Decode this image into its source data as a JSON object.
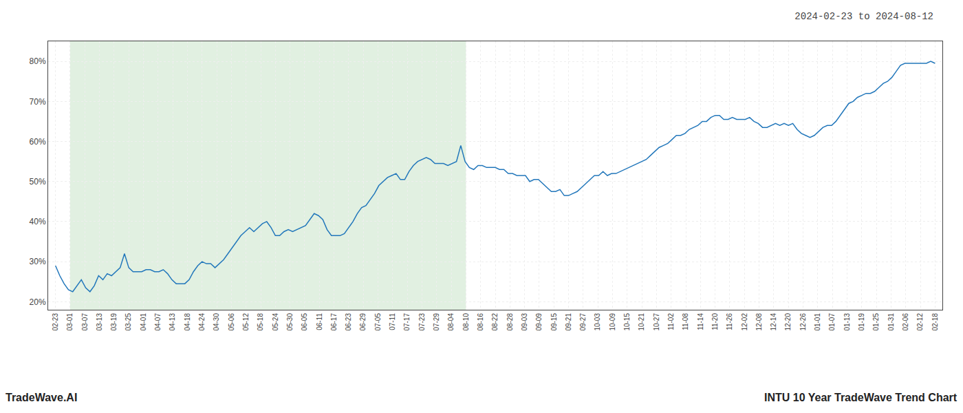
{
  "chart_data": {
    "type": "line",
    "title": "2024-02-23 to 2024-08-12",
    "annotations": [
      "TradeWave.AI",
      "INTU 10 Year TradeWave Trend Chart"
    ],
    "color": "#2277bb",
    "grid": true,
    "shade": {
      "from": "03-01",
      "to": "08-10",
      "color": "#d4ead4"
    },
    "xlim": [
      -1.7,
      205.7
    ],
    "xticks": [
      {
        "value": 0,
        "label": "02-23"
      },
      {
        "value": 3.4,
        "label": "03-01"
      },
      {
        "value": 6.8,
        "label": "03-07"
      },
      {
        "value": 10.2,
        "label": "03-13"
      },
      {
        "value": 13.6,
        "label": "03-19"
      },
      {
        "value": 17,
        "label": "03-25"
      },
      {
        "value": 20.4,
        "label": "04-01"
      },
      {
        "value": 23.8,
        "label": "04-07"
      },
      {
        "value": 27.2,
        "label": "04-13"
      },
      {
        "value": 30.6,
        "label": "04-18"
      },
      {
        "value": 34,
        "label": "04-24"
      },
      {
        "value": 37.4,
        "label": "04-30"
      },
      {
        "value": 40.8,
        "label": "05-06"
      },
      {
        "value": 44.2,
        "label": "05-12"
      },
      {
        "value": 47.6,
        "label": "05-18"
      },
      {
        "value": 51,
        "label": "05-24"
      },
      {
        "value": 54.4,
        "label": "05-30"
      },
      {
        "value": 57.8,
        "label": "06-05"
      },
      {
        "value": 61.2,
        "label": "06-11"
      },
      {
        "value": 64.6,
        "label": "06-17"
      },
      {
        "value": 68,
        "label": "06-23"
      },
      {
        "value": 71.4,
        "label": "06-29"
      },
      {
        "value": 74.8,
        "label": "07-05"
      },
      {
        "value": 78.2,
        "label": "07-11"
      },
      {
        "value": 81.6,
        "label": "07-17"
      },
      {
        "value": 85,
        "label": "07-23"
      },
      {
        "value": 88.4,
        "label": "07-29"
      },
      {
        "value": 91.8,
        "label": "08-04"
      },
      {
        "value": 95.2,
        "label": "08-10"
      },
      {
        "value": 98.6,
        "label": "08-16"
      },
      {
        "value": 102,
        "label": "08-22"
      },
      {
        "value": 105.4,
        "label": "08-28"
      },
      {
        "value": 108.8,
        "label": "09-03"
      },
      {
        "value": 112.2,
        "label": "09-09"
      },
      {
        "value": 115.6,
        "label": "09-15"
      },
      {
        "value": 119,
        "label": "09-21"
      },
      {
        "value": 122.4,
        "label": "09-27"
      },
      {
        "value": 125.8,
        "label": "10-03"
      },
      {
        "value": 129.2,
        "label": "10-09"
      },
      {
        "value": 132.6,
        "label": "10-15"
      },
      {
        "value": 136,
        "label": "10-21"
      },
      {
        "value": 139.4,
        "label": "10-27"
      },
      {
        "value": 142.8,
        "label": "11-02"
      },
      {
        "value": 146.2,
        "label": "11-08"
      },
      {
        "value": 149.6,
        "label": "11-14"
      },
      {
        "value": 153,
        "label": "11-20"
      },
      {
        "value": 156.4,
        "label": "11-26"
      },
      {
        "value": 159.8,
        "label": "12-02"
      },
      {
        "value": 163.2,
        "label": "12-08"
      },
      {
        "value": 166.6,
        "label": "12-14"
      },
      {
        "value": 170,
        "label": "12-20"
      },
      {
        "value": 173.4,
        "label": "12-26"
      },
      {
        "value": 176.8,
        "label": "01-01"
      },
      {
        "value": 180.2,
        "label": "01-07"
      },
      {
        "value": 183.6,
        "label": "01-13"
      },
      {
        "value": 187,
        "label": "01-19"
      },
      {
        "value": 190.4,
        "label": "01-25"
      },
      {
        "value": 193.8,
        "label": "01-31"
      },
      {
        "value": 197.2,
        "label": "02-06"
      },
      {
        "value": 200.6,
        "label": "02-12"
      },
      {
        "value": 204,
        "label": "02-18"
      }
    ],
    "ylim": [
      18,
      85
    ],
    "yticks": [
      {
        "value": 20,
        "label": "20%"
      },
      {
        "value": 30,
        "label": "30%"
      },
      {
        "value": 40,
        "label": "40%"
      },
      {
        "value": 50,
        "label": "50%"
      },
      {
        "value": 60,
        "label": "60%"
      },
      {
        "value": 70,
        "label": "70%"
      },
      {
        "value": 80,
        "label": "80%"
      }
    ],
    "values": [
      29.0,
      26.5,
      24.5,
      23.0,
      22.5,
      24.0,
      25.5,
      23.5,
      22.5,
      24.0,
      26.5,
      25.5,
      27.0,
      26.5,
      27.5,
      28.5,
      32.0,
      28.5,
      27.5,
      27.5,
      27.5,
      28.0,
      28.0,
      27.5,
      27.5,
      28.0,
      27.0,
      25.5,
      24.5,
      24.5,
      24.5,
      25.5,
      27.5,
      29.0,
      30.0,
      29.5,
      29.5,
      28.5,
      29.5,
      30.5,
      32.0,
      33.5,
      35.0,
      36.5,
      37.5,
      38.5,
      37.5,
      38.5,
      39.5,
      40.0,
      38.5,
      36.5,
      36.5,
      37.5,
      38.0,
      37.5,
      38.0,
      38.5,
      39.0,
      40.5,
      42.0,
      41.5,
      40.5,
      38.0,
      36.5,
      36.5,
      36.5,
      37.0,
      38.5,
      40.0,
      42.0,
      43.5,
      44.0,
      45.5,
      47.0,
      49.0,
      50.0,
      51.0,
      51.5,
      52.0,
      50.5,
      50.5,
      52.5,
      54.0,
      55.0,
      55.5,
      56.0,
      55.5,
      54.5,
      54.5,
      54.5,
      54.0,
      54.5,
      55.0,
      59.0,
      55.0,
      53.5,
      53.0,
      54.0,
      54.0,
      53.5,
      53.5,
      53.5,
      53.0,
      53.0,
      52.0,
      52.0,
      51.5,
      51.5,
      51.5,
      50.0,
      50.5,
      50.5,
      49.5,
      48.5,
      47.5,
      47.5,
      48.0,
      46.5,
      46.5,
      47.0,
      47.5,
      48.5,
      49.5,
      50.5,
      51.5,
      51.5,
      52.5,
      51.5,
      52.0,
      52.0,
      52.5,
      53.0,
      53.5,
      54.0,
      54.5,
      55.0,
      55.5,
      56.5,
      57.5,
      58.5,
      59.0,
      59.5,
      60.5,
      61.5,
      61.5,
      62.0,
      63.0,
      63.5,
      64.0,
      65.0,
      65.0,
      66.0,
      66.5,
      66.5,
      65.5,
      65.5,
      66.0,
      65.5,
      65.5,
      65.5,
      66.0,
      65.0,
      64.5,
      63.5,
      63.5,
      64.0,
      64.5,
      64.0,
      64.5,
      64.0,
      64.5,
      63.0,
      62.0,
      61.5,
      61.0,
      61.5,
      62.5,
      63.5,
      64.0,
      64.0,
      65.0,
      66.5,
      68.0,
      69.5,
      70.0,
      71.0,
      71.5,
      72.0,
      72.0,
      72.5,
      73.5,
      74.5,
      75.0,
      76.0,
      77.5,
      79.0,
      79.5,
      79.5,
      79.5,
      79.5,
      79.5,
      79.5,
      80.0,
      79.5
    ]
  }
}
